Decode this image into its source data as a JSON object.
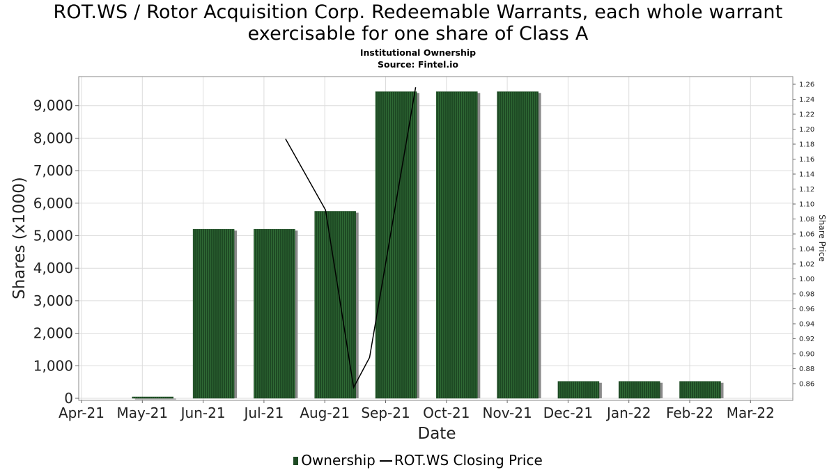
{
  "header": {
    "title_line1": "ROT.WS / Rotor Acquisition Corp. Redeemable Warrants, each whole warrant",
    "title_line2": "exercisable for one share of Class A",
    "subtitle": "Institutional Ownership",
    "source": "Source: Fintel.io"
  },
  "legend": {
    "ownership_label": "Ownership",
    "price_label": "ROT.WS Closing Price"
  },
  "colors": {
    "bar_fill": "#1e4a24",
    "bar_shadow": "#8a8a8a",
    "price_line": "#000000",
    "grid": "#dcdcdc"
  },
  "chart_data": {
    "type": "bar",
    "title": "ROT.WS / Rotor Acquisition Corp. Redeemable Warrants, each whole warrant exercisable for one share of Class A",
    "xlabel": "Date",
    "ylabel": "Shares (x1000)",
    "y2label": "Share Price",
    "categories": [
      "Apr-21",
      "May-21",
      "Jun-21",
      "Jul-21",
      "Aug-21",
      "Sep-21",
      "Oct-21",
      "Nov-21",
      "Dec-21",
      "Jan-22",
      "Feb-22",
      "Mar-22"
    ],
    "ylim": [
      0,
      9900
    ],
    "y2lim": [
      0.84,
      1.27
    ],
    "yticks": [
      0,
      1000,
      2000,
      3000,
      4000,
      5000,
      6000,
      7000,
      8000,
      9000
    ],
    "y2ticks": [
      0.86,
      0.88,
      0.9,
      0.92,
      0.94,
      0.96,
      0.98,
      1.0,
      1.02,
      1.04,
      1.06,
      1.08,
      1.1,
      1.12,
      1.14,
      1.16,
      1.18,
      1.2,
      1.22,
      1.24,
      1.26
    ],
    "grid": true,
    "legend_position": "bottom",
    "series": [
      {
        "name": "Ownership",
        "type": "bar",
        "axis": "left",
        "x": [
          "May-21",
          "Jun-21",
          "Jul-21",
          "Aug-21",
          "Sep-21",
          "Oct-21",
          "Nov-21",
          "Dec-21",
          "Jan-22",
          "Feb-22"
        ],
        "values": [
          30,
          5200,
          5200,
          5750,
          9430,
          9430,
          9430,
          520,
          520,
          520
        ]
      },
      {
        "name": "ROT.WS Closing Price",
        "type": "line",
        "axis": "right",
        "points": [
          {
            "x": "2021-07-12",
            "y": 1.187
          },
          {
            "x": "2021-08-01",
            "y": 1.092
          },
          {
            "x": "2021-08-15",
            "y": 0.855
          },
          {
            "x": "2021-08-23",
            "y": 0.895
          },
          {
            "x": "2021-09-15",
            "y": 1.256
          }
        ]
      }
    ]
  }
}
